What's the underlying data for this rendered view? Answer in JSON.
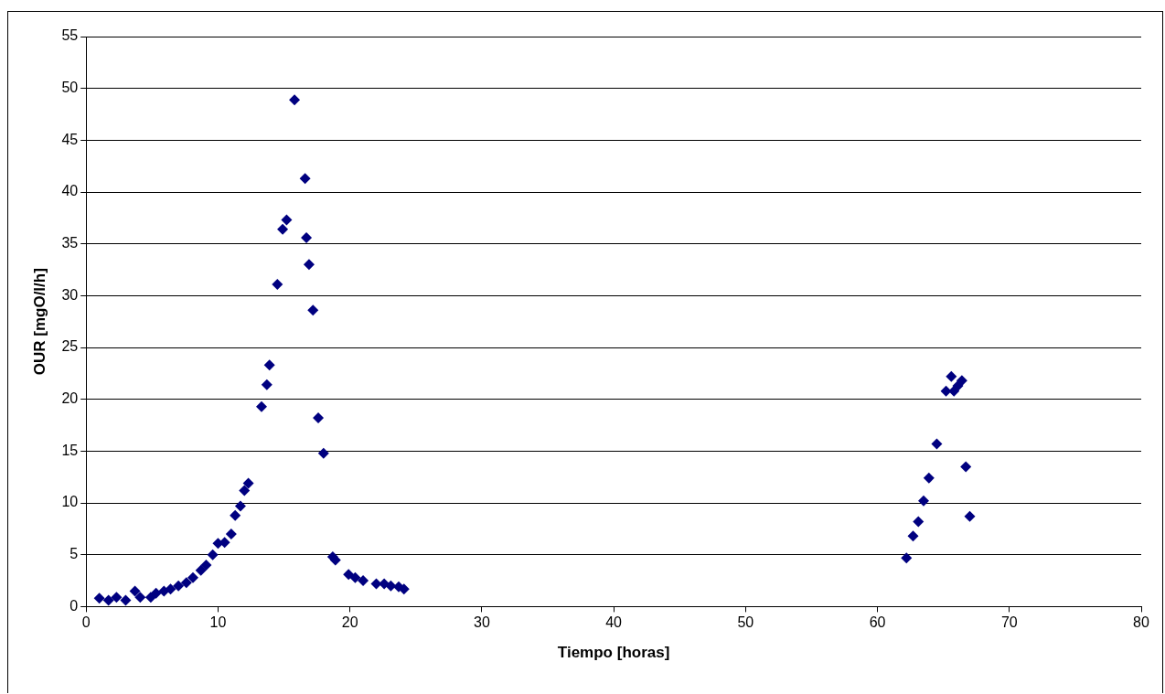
{
  "chart_data": {
    "type": "scatter",
    "xlabel": "Tiempo [horas]",
    "ylabel": "OUR [mgO/l/h]",
    "xlim": [
      0,
      80
    ],
    "xticks": [
      0,
      10,
      20,
      30,
      40,
      50,
      60,
      70,
      80
    ],
    "ylim": [
      0,
      55
    ],
    "yticks": [
      0,
      5,
      10,
      15,
      20,
      25,
      30,
      35,
      40,
      45,
      50,
      55
    ],
    "grid": "y",
    "legend": false,
    "marker": "diamond",
    "series": [
      {
        "color": "#000080",
        "x": [
          1.0,
          1.7,
          2.3,
          3.0,
          3.7,
          4.1,
          4.9,
          5.3,
          5.9,
          6.4,
          7.0,
          7.6,
          8.1,
          8.7,
          9.1,
          9.6,
          10.0,
          10.5,
          11.0,
          11.3,
          11.7,
          12.0,
          12.3,
          13.3,
          13.7,
          13.9,
          14.5,
          14.9,
          15.2,
          15.8,
          16.6,
          16.7,
          16.9,
          17.2,
          17.6,
          18.0,
          18.7,
          18.9,
          19.9,
          20.4,
          21.0,
          22.0,
          22.6,
          23.1,
          23.7,
          24.1,
          62.2,
          62.7,
          63.1,
          63.5,
          63.9,
          64.5,
          65.2,
          65.6,
          65.8,
          66.1,
          66.4,
          66.7,
          67.0
        ],
        "values": [
          0.8,
          0.6,
          0.9,
          0.6,
          1.5,
          0.9,
          0.9,
          1.3,
          1.5,
          1.7,
          2.0,
          2.3,
          2.8,
          3.5,
          4.0,
          5.0,
          6.1,
          6.2,
          7.0,
          8.8,
          9.7,
          11.2,
          11.9,
          19.3,
          21.4,
          23.3,
          31.1,
          36.4,
          37.3,
          48.9,
          41.3,
          35.6,
          33.0,
          28.6,
          18.2,
          14.8,
          4.8,
          4.5,
          3.1,
          2.8,
          2.5,
          2.2,
          2.2,
          2.0,
          1.9,
          1.7,
          4.7,
          6.8,
          8.2,
          10.2,
          12.4,
          15.7,
          20.8,
          22.2,
          20.8,
          21.3,
          21.8,
          13.5,
          8.7
        ]
      }
    ]
  }
}
